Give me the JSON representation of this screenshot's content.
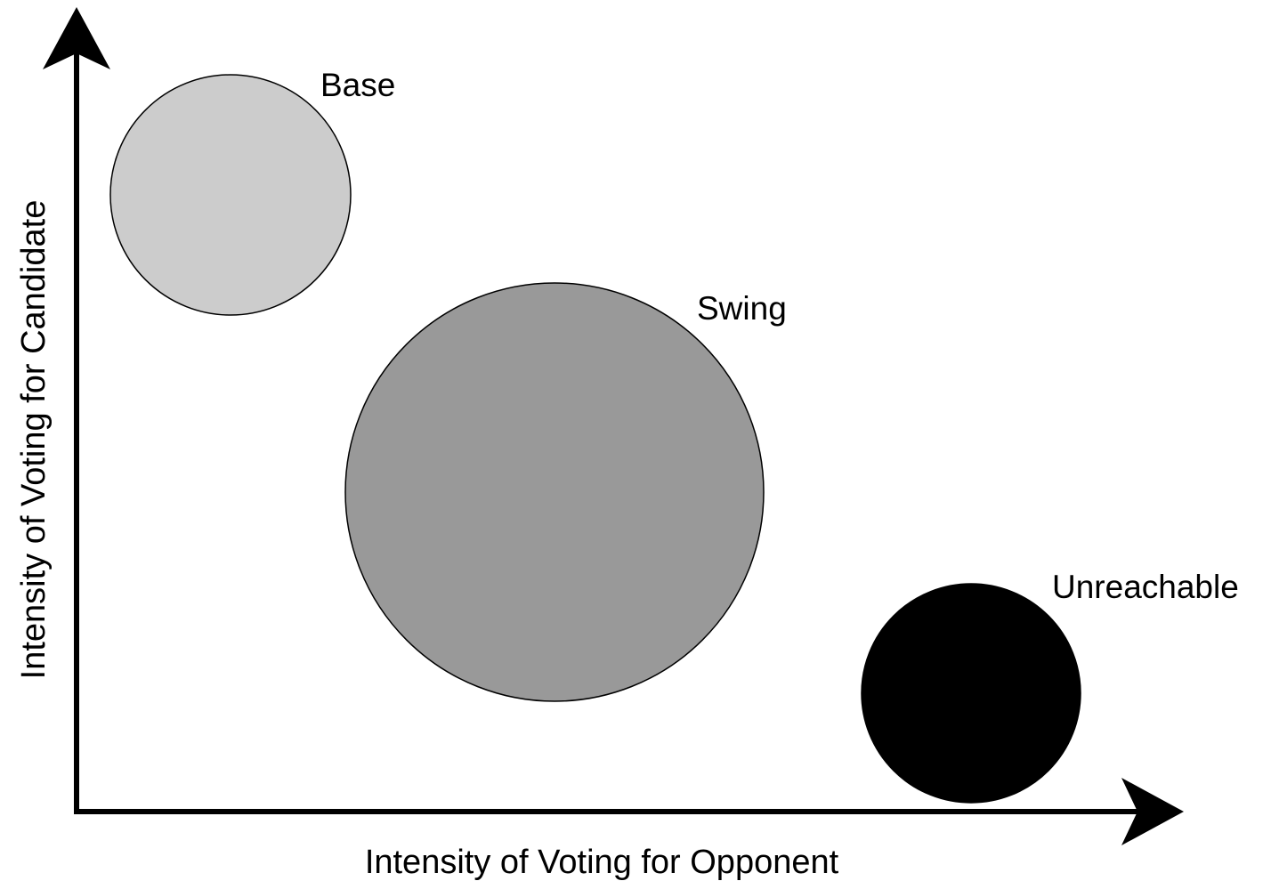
{
  "axes": {
    "x_label": "Intensity of Voting for Opponent",
    "y_label": "Intensity of Voting for Candidate",
    "axis_color": "#000000"
  },
  "groups": [
    {
      "id": "base",
      "label": "Base",
      "fill": "#cccccc",
      "stroke": "#000000"
    },
    {
      "id": "swing",
      "label": "Swing",
      "fill": "#999999",
      "stroke": "#000000"
    },
    {
      "id": "unreachable",
      "label": "Unreachable",
      "fill": "#000000",
      "stroke": "#000000"
    }
  ]
}
